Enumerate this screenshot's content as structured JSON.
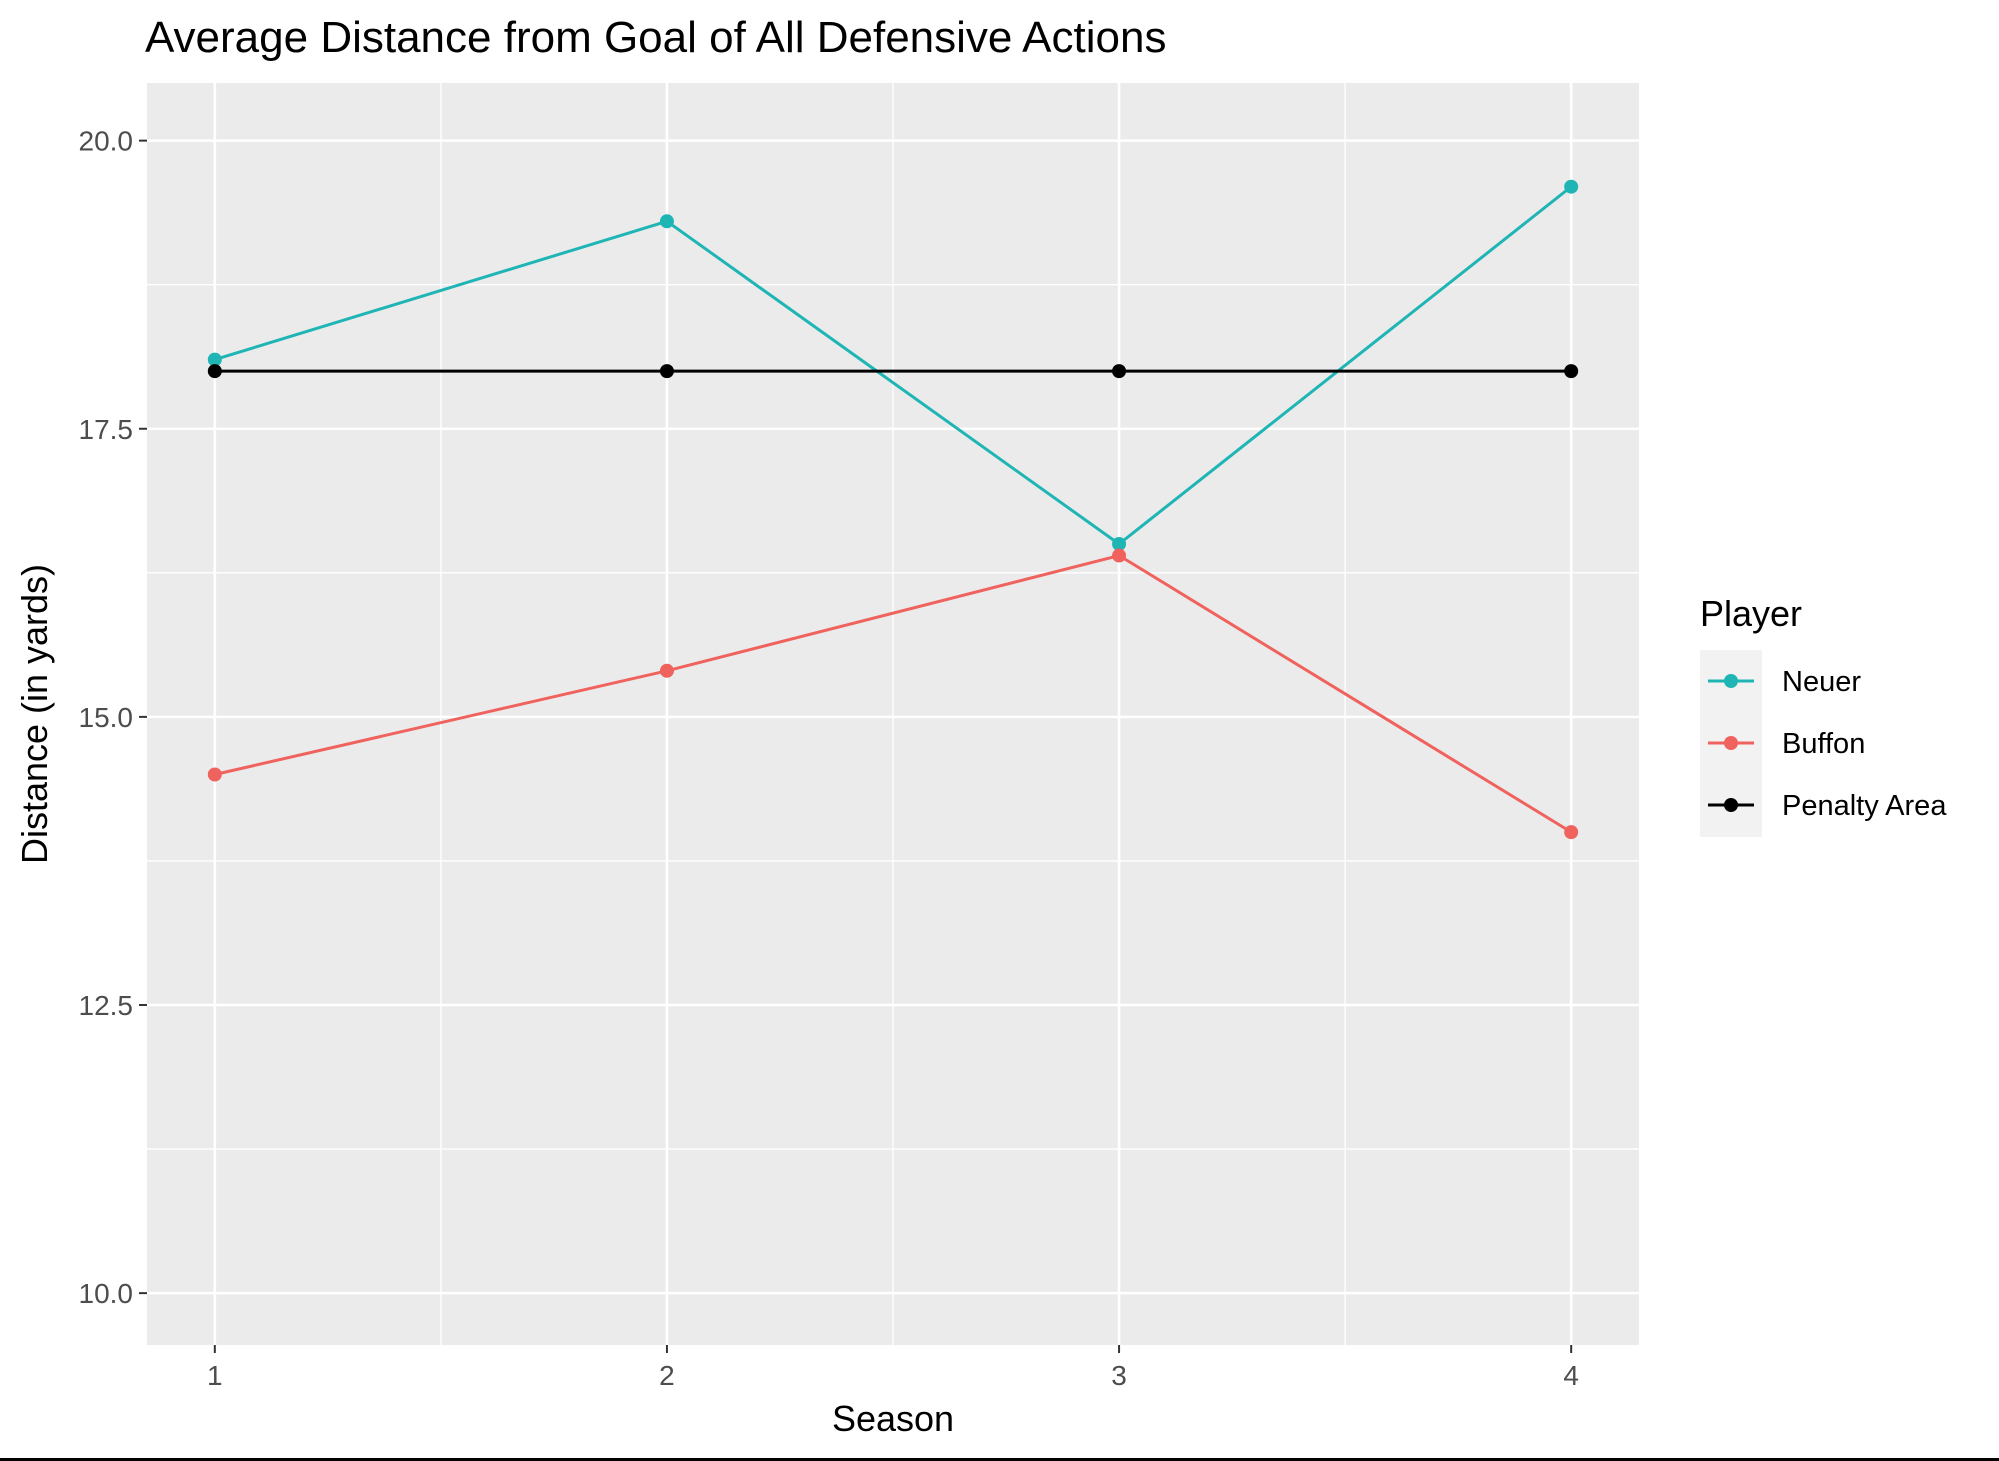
{
  "chart_data": {
    "type": "line",
    "title": "Average Distance from Goal of All Defensive Actions",
    "xlabel": "Season",
    "ylabel": "Distance (in yards)",
    "x": [
      1,
      2,
      3,
      4
    ],
    "x_ticks": [
      "1",
      "2",
      "3",
      "4"
    ],
    "xlim": [
      0.85,
      4.15
    ],
    "ylim": [
      9.55,
      20.5
    ],
    "y_ticks": [
      "10.0",
      "12.5",
      "15.0",
      "17.5",
      "20.0"
    ],
    "y_tick_values": [
      10.0,
      12.5,
      15.0,
      17.5,
      20.0
    ],
    "grid": true,
    "legend_title": "Player",
    "legend_position": "right",
    "panel_color": "#ebebeb",
    "grid_color": "#ffffff",
    "series": [
      {
        "name": "Neuer",
        "color": "#1fb5b5",
        "values": [
          18.1,
          19.3,
          16.5,
          19.6
        ]
      },
      {
        "name": "Buffon",
        "color": "#f0625d",
        "values": [
          14.5,
          15.4,
          16.4,
          14.0
        ]
      },
      {
        "name": "Penalty Area",
        "color": "#000000",
        "values": [
          18.0,
          18.0,
          18.0,
          18.0
        ]
      }
    ]
  }
}
